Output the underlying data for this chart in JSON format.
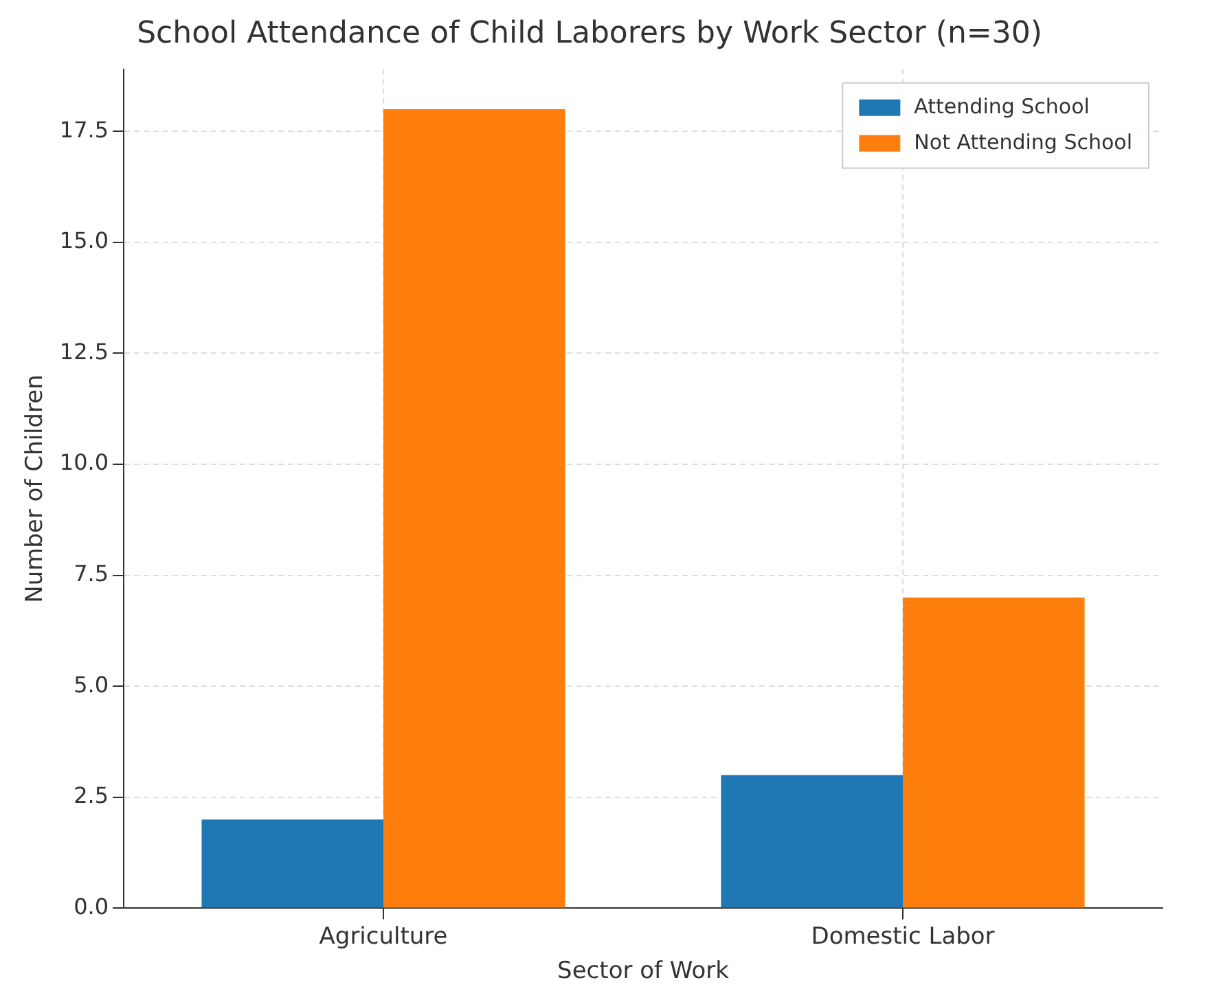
{
  "chart_data": {
    "type": "bar",
    "title": "School Attendance of Child Laborers by Work Sector (n=30)",
    "xlabel": "Sector of Work",
    "ylabel": "Number of Children",
    "categories": [
      "Agriculture",
      "Domestic Labor"
    ],
    "series": [
      {
        "name": "Attending School",
        "color": "#1f77b4",
        "values": [
          2,
          3
        ]
      },
      {
        "name": "Not Attending School",
        "color": "#ff7f0e",
        "values": [
          18,
          7
        ]
      }
    ],
    "ylim": [
      0,
      18.9
    ],
    "yticks": [
      {
        "value": 0,
        "label": "0.0"
      },
      {
        "value": 2.5,
        "label": "2.5"
      },
      {
        "value": 5,
        "label": "5.0"
      },
      {
        "value": 7.5,
        "label": "7.5"
      },
      {
        "value": 10,
        "label": "10.0"
      },
      {
        "value": 12.5,
        "label": "12.5"
      },
      {
        "value": 15,
        "label": "15.0"
      },
      {
        "value": 17.5,
        "label": "17.5"
      }
    ],
    "grid": true,
    "legend": "top right"
  }
}
